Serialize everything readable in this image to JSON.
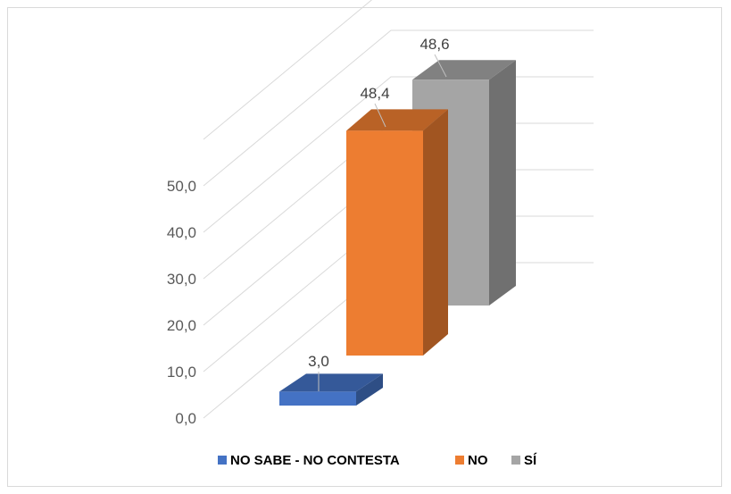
{
  "chart_data": {
    "type": "bar",
    "three_d": true,
    "categories": [
      "NO SABE - NO CONTESTA",
      "NO",
      "SÍ"
    ],
    "values": [
      3.0,
      48.4,
      48.6
    ],
    "value_labels": [
      "3,0",
      "48,4",
      "48,6"
    ],
    "series_colors": [
      "#4472c4",
      "#ed7d31",
      "#a5a5a5"
    ],
    "y_ticks": [
      "0,0",
      "10,0",
      "20,0",
      "30,0",
      "40,0",
      "50,0"
    ],
    "ylim": [
      0,
      50
    ],
    "grid": true,
    "legend_position": "bottom",
    "legend": [
      {
        "label": "NO SABE - NO CONTESTA",
        "color": "#4472c4"
      },
      {
        "label": "NO",
        "color": "#ed7d31"
      },
      {
        "label": "SÍ",
        "color": "#a5a5a5"
      }
    ]
  }
}
